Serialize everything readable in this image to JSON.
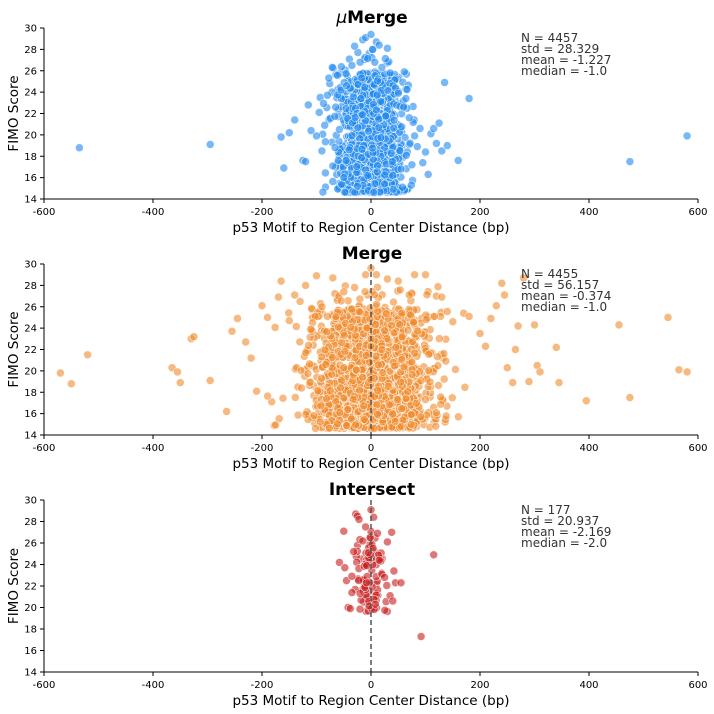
{
  "chart_data": [
    {
      "type": "scatter",
      "title": "μMerge",
      "title_prefix": "μ",
      "title_rest": "Merge",
      "xlabel": "p53 Motif to Region Center Distance (bp)",
      "ylabel": "FIMO Score",
      "xlim": [
        -600,
        600
      ],
      "ylim": [
        14,
        30
      ],
      "xticks": [
        -600,
        -400,
        -200,
        0,
        200,
        400,
        600
      ],
      "yticks": [
        14,
        16,
        18,
        20,
        22,
        24,
        26,
        28,
        30
      ],
      "color": "#1f88f0",
      "center_line": false,
      "stats": [
        "N = 4457",
        "std = 28.329",
        "mean = -1.227",
        "median = -1.0"
      ],
      "spread": 28,
      "y_range": [
        14.6,
        29.5
      ],
      "dense_count": 1400,
      "points": [
        [
          -535,
          18.8
        ],
        [
          -295,
          19.1
        ],
        [
          -165,
          19.8
        ],
        [
          -160,
          16.9
        ],
        [
          -150,
          20.2
        ],
        [
          -140,
          21.4
        ],
        [
          -125,
          17.6
        ],
        [
          -120,
          17.5
        ],
        [
          -115,
          22.8
        ],
        [
          -110,
          20.4
        ],
        [
          -100,
          19.9
        ],
        [
          -95,
          22.1
        ],
        [
          -90,
          18.5
        ],
        [
          -85,
          20.9
        ],
        [
          -80,
          23.7
        ],
        [
          -70,
          17.1
        ],
        [
          -65,
          22.6
        ],
        [
          -60,
          17.6
        ],
        [
          -58,
          20.5
        ],
        [
          -55,
          24.2
        ],
        [
          -50,
          16.0
        ],
        [
          -45,
          24.6
        ],
        [
          -40,
          18.6
        ],
        [
          -35,
          26.5
        ],
        [
          -30,
          28.3
        ],
        [
          -25,
          15.2
        ],
        [
          -20,
          26.8
        ],
        [
          -15,
          28.9
        ],
        [
          -10,
          29.1
        ],
        [
          -5,
          14.8
        ],
        [
          0,
          29.4
        ],
        [
          5,
          14.6
        ],
        [
          10,
          28.7
        ],
        [
          15,
          28.4
        ],
        [
          20,
          26.3
        ],
        [
          25,
          15.4
        ],
        [
          30,
          28.1
        ],
        [
          35,
          25.8
        ],
        [
          40,
          16.2
        ],
        [
          45,
          24.4
        ],
        [
          50,
          23.9
        ],
        [
          55,
          16.8
        ],
        [
          60,
          22.6
        ],
        [
          65,
          18.1
        ],
        [
          70,
          21.6
        ],
        [
          75,
          17.2
        ],
        [
          80,
          19.9
        ],
        [
          85,
          18.9
        ],
        [
          90,
          20.6
        ],
        [
          95,
          17.4
        ],
        [
          100,
          18.4
        ],
        [
          105,
          16.3
        ],
        [
          110,
          20.1
        ],
        [
          115,
          20.6
        ],
        [
          120,
          19.2
        ],
        [
          125,
          21.1
        ],
        [
          130,
          18.5
        ],
        [
          135,
          24.9
        ],
        [
          140,
          19.0
        ],
        [
          160,
          17.6
        ],
        [
          180,
          23.4
        ],
        [
          475,
          17.5
        ],
        [
          580,
          19.9
        ]
      ]
    },
    {
      "type": "scatter",
      "title": "Merge",
      "xlabel": "p53 Motif to Region Center Distance (bp)",
      "ylabel": "FIMO Score",
      "xlim": [
        -600,
        600
      ],
      "ylim": [
        14,
        30
      ],
      "xticks": [
        -600,
        -400,
        -200,
        0,
        200,
        400,
        600
      ],
      "yticks": [
        14,
        16,
        18,
        20,
        22,
        24,
        26,
        28,
        30
      ],
      "color": "#f08a2c",
      "center_line": true,
      "stats": [
        "N = 4455",
        "std = 56.157",
        "mean = -0.374",
        "median = -1.0"
      ],
      "spread": 55,
      "y_range": [
        14.6,
        29.6
      ],
      "dense_count": 1700,
      "points": [
        [
          -570,
          19.8
        ],
        [
          -550,
          18.8
        ],
        [
          -520,
          21.5
        ],
        [
          -365,
          20.3
        ],
        [
          -355,
          19.9
        ],
        [
          -350,
          18.9
        ],
        [
          -330,
          23.0
        ],
        [
          -325,
          23.2
        ],
        [
          -295,
          19.1
        ],
        [
          -265,
          16.2
        ],
        [
          -255,
          23.7
        ],
        [
          -245,
          24.9
        ],
        [
          -230,
          22.7
        ],
        [
          -220,
          21.2
        ],
        [
          -210,
          18.1
        ],
        [
          -200,
          26.1
        ],
        [
          -190,
          25.0
        ],
        [
          -170,
          26.9
        ],
        [
          -165,
          28.4
        ],
        [
          -150,
          24.7
        ],
        [
          -140,
          27.1
        ],
        [
          -130,
          26.5
        ],
        [
          -120,
          28.0
        ],
        [
          -110,
          23.9
        ],
        [
          -100,
          28.9
        ],
        [
          -90,
          26.0
        ],
        [
          -80,
          25.1
        ],
        [
          -70,
          28.7
        ],
        [
          -60,
          24.1
        ],
        [
          -50,
          27.4
        ],
        [
          -30,
          27.8
        ],
        [
          -10,
          29.0
        ],
        [
          0,
          29.6
        ],
        [
          10,
          29.0
        ],
        [
          30,
          28.6
        ],
        [
          50,
          28.4
        ],
        [
          70,
          27.1
        ],
        [
          80,
          29.0
        ],
        [
          100,
          29.0
        ],
        [
          120,
          27.0
        ],
        [
          130,
          26.9
        ],
        [
          150,
          24.6
        ],
        [
          170,
          25.4
        ],
        [
          180,
          25.1
        ],
        [
          200,
          23.5
        ],
        [
          210,
          22.3
        ],
        [
          220,
          24.9
        ],
        [
          230,
          26.1
        ],
        [
          240,
          28.2
        ],
        [
          245,
          27.1
        ],
        [
          250,
          20.3
        ],
        [
          260,
          18.9
        ],
        [
          265,
          22.0
        ],
        [
          270,
          24.2
        ],
        [
          280,
          28.7
        ],
        [
          290,
          19.0
        ],
        [
          300,
          24.3
        ],
        [
          305,
          20.5
        ],
        [
          310,
          19.9
        ],
        [
          340,
          22.2
        ],
        [
          345,
          18.9
        ],
        [
          395,
          17.2
        ],
        [
          455,
          24.3
        ],
        [
          475,
          17.5
        ],
        [
          545,
          25.0
        ],
        [
          565,
          20.1
        ],
        [
          580,
          19.9
        ]
      ]
    },
    {
      "type": "scatter",
      "title": "Intersect",
      "xlabel": "p53 Motif to Region Center Distance (bp)",
      "ylabel": "FIMO Score",
      "xlim": [
        -600,
        600
      ],
      "ylim": [
        14,
        30
      ],
      "xticks": [
        -600,
        -400,
        -200,
        0,
        200,
        400,
        600
      ],
      "yticks": [
        14,
        16,
        18,
        20,
        22,
        24,
        26,
        28,
        30
      ],
      "color": "#c81e1e",
      "center_line": true,
      "stats": [
        "N = 177",
        "std = 20.937",
        "mean = -2.169",
        "median = -2.0"
      ],
      "spread": 16,
      "y_range": [
        19.6,
        29.0
      ],
      "dense_count": 90,
      "points": [
        [
          -58,
          24.2
        ],
        [
          -50,
          27.1
        ],
        [
          -48,
          23.7
        ],
        [
          -45,
          22.5
        ],
        [
          -42,
          20.0
        ],
        [
          -38,
          19.9
        ],
        [
          -35,
          22.9
        ],
        [
          -32,
          25.2
        ],
        [
          -28,
          28.7
        ],
        [
          -25,
          28.5
        ],
        [
          -22,
          28.2
        ],
        [
          -20,
          21.3
        ],
        [
          -15,
          26.2
        ],
        [
          -10,
          27.5
        ],
        [
          -8,
          22.3
        ],
        [
          -5,
          25.1
        ],
        [
          0,
          29.1
        ],
        [
          5,
          28.4
        ],
        [
          8,
          20.3
        ],
        [
          12,
          26.9
        ],
        [
          15,
          24.4
        ],
        [
          20,
          23.1
        ],
        [
          25,
          22.8
        ],
        [
          30,
          26.1
        ],
        [
          35,
          21.1
        ],
        [
          38,
          27.0
        ],
        [
          40,
          20.6
        ],
        [
          42,
          23.4
        ],
        [
          45,
          22.3
        ],
        [
          55,
          22.3
        ],
        [
          92,
          17.3
        ],
        [
          115,
          24.9
        ]
      ]
    }
  ]
}
